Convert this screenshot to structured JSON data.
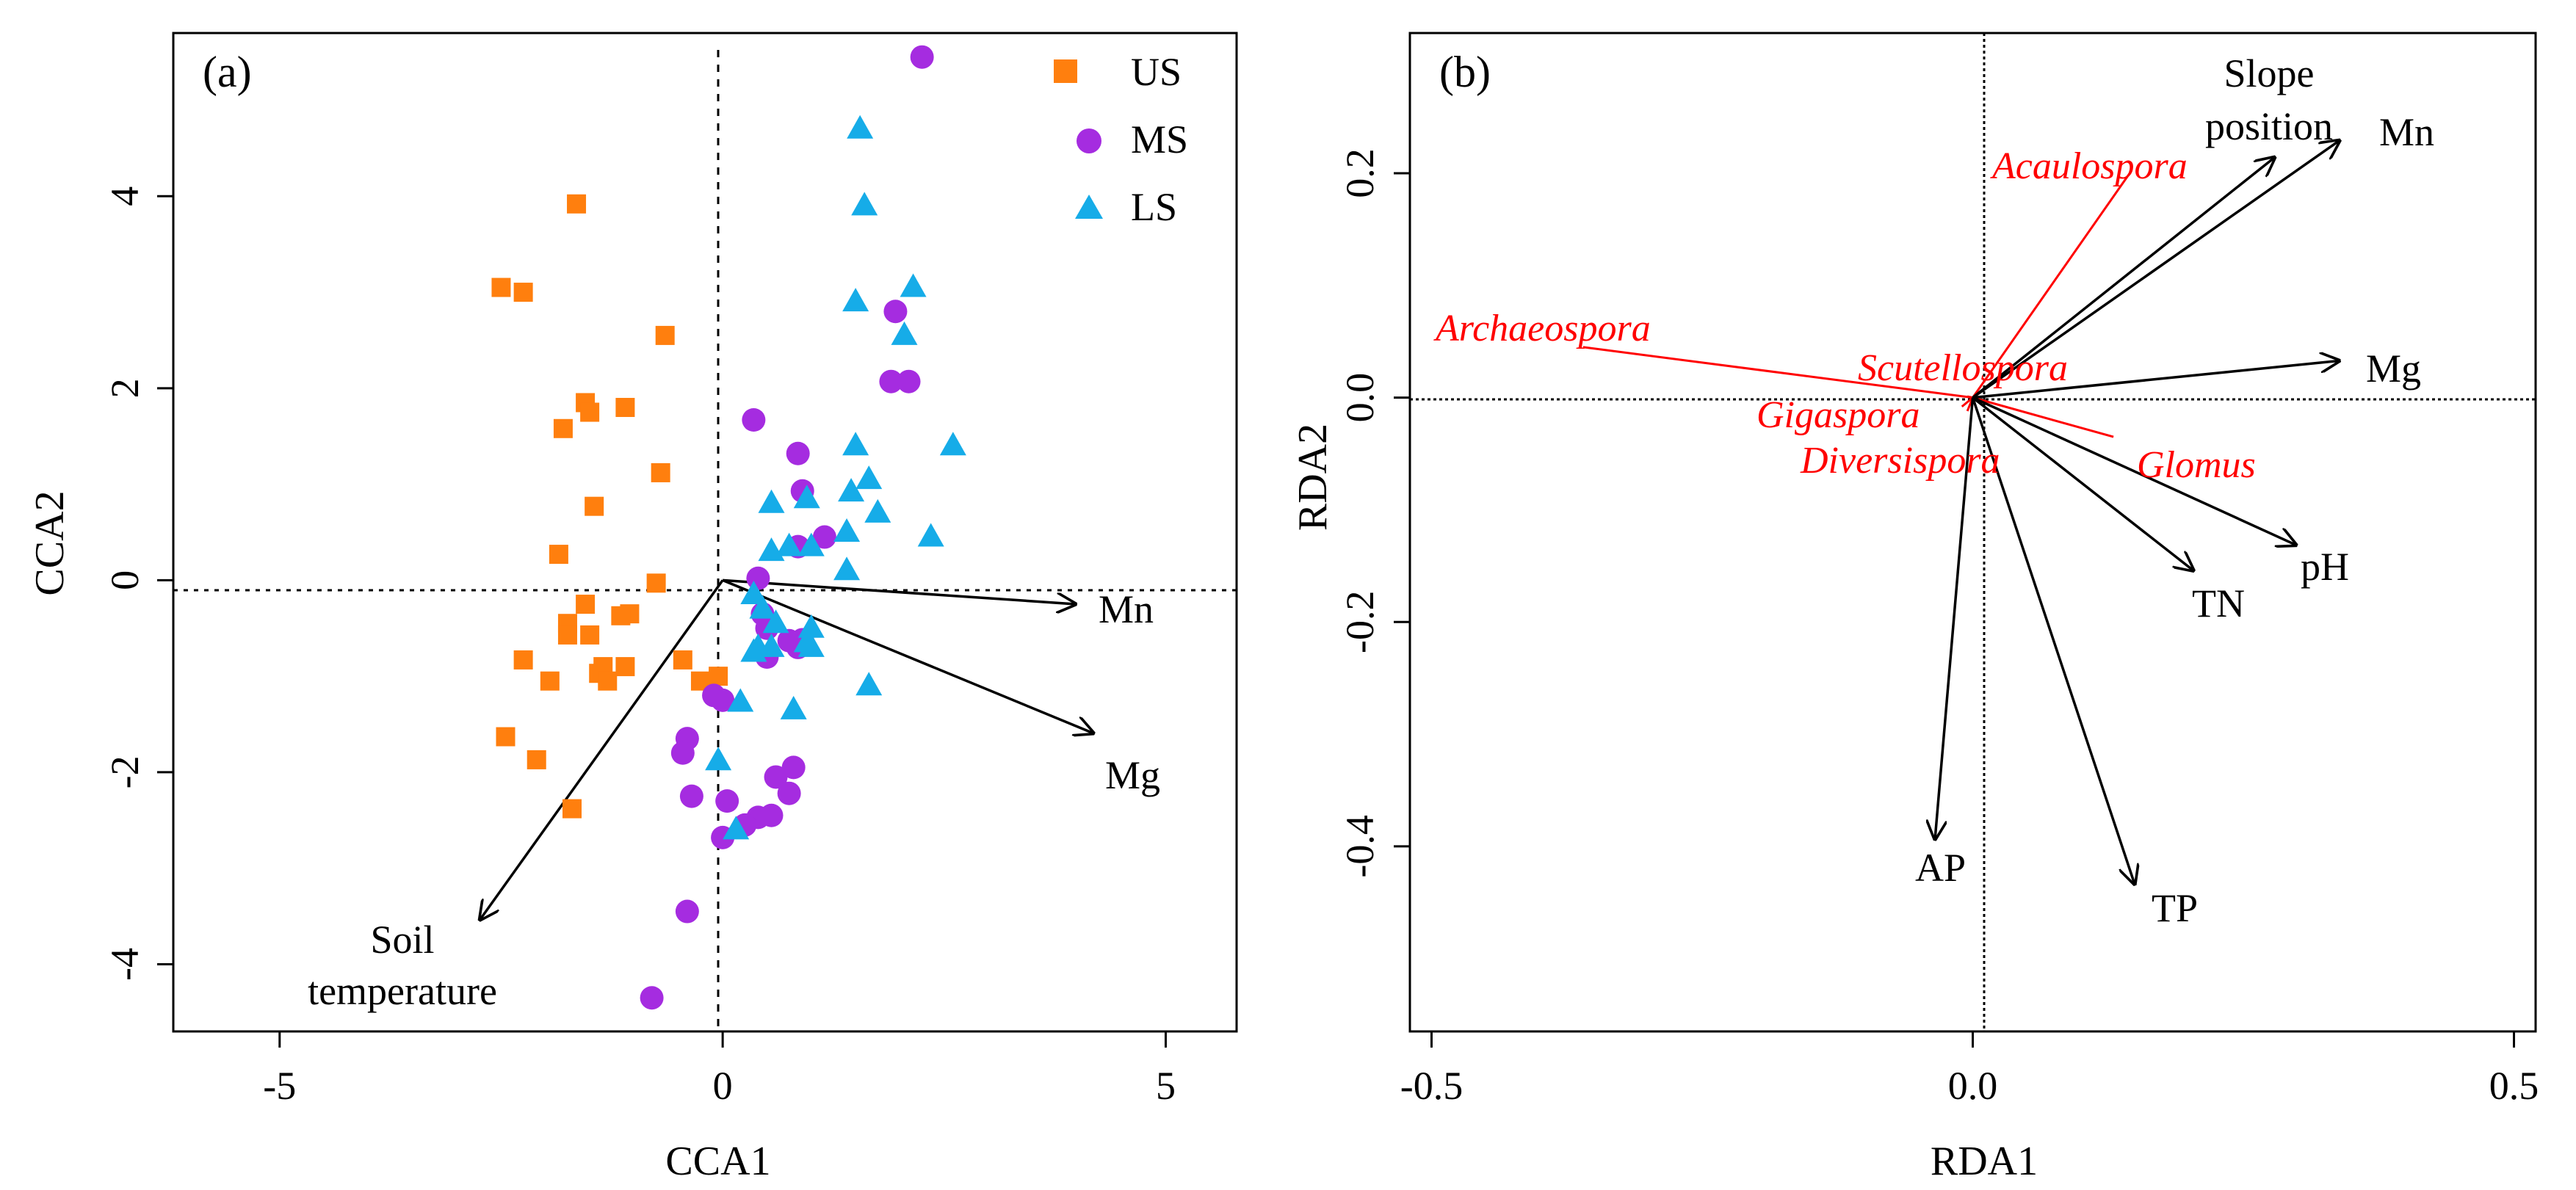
{
  "chart_data": [
    {
      "type": "scatter",
      "panel": "(a)",
      "xlabel": "CCA1",
      "ylabel": "CCA2",
      "xlim": [
        -6.2,
        5.8
      ],
      "ylim": [
        -4.7,
        5.7
      ],
      "xticks": [
        "-5",
        "0",
        "5"
      ],
      "yticks": [
        "-4",
        "-2",
        "0",
        "2",
        "4"
      ],
      "xtick_values": [
        -5,
        0,
        5
      ],
      "ytick_values": [
        -4,
        -2,
        0,
        2,
        4
      ],
      "legend_position": "top-right",
      "colors": {
        "US": "#FF7F0E",
        "MS": "#A52CE0",
        "LS": "#16ACE8",
        "axis": "#000000"
      },
      "series": [
        {
          "name": "US",
          "marker": "square",
          "points": [
            [
              -1.65,
              3.92
            ],
            [
              -2.5,
              3.05
            ],
            [
              -2.25,
              3.0
            ],
            [
              -0.65,
              2.55
            ],
            [
              -1.55,
              1.85
            ],
            [
              -1.5,
              1.75
            ],
            [
              -1.1,
              1.8
            ],
            [
              -1.8,
              1.58
            ],
            [
              -0.7,
              1.12
            ],
            [
              -1.45,
              0.77
            ],
            [
              -1.85,
              0.27
            ],
            [
              -0.75,
              -0.03
            ],
            [
              -1.55,
              -0.25
            ],
            [
              -1.75,
              -0.45
            ],
            [
              -1.05,
              -0.35
            ],
            [
              -1.15,
              -0.37
            ],
            [
              -1.75,
              -0.57
            ],
            [
              -1.5,
              -0.57
            ],
            [
              -2.25,
              -0.83
            ],
            [
              -1.35,
              -0.9
            ],
            [
              -1.1,
              -0.9
            ],
            [
              -0.45,
              -0.83
            ],
            [
              -1.4,
              -0.97
            ],
            [
              -1.3,
              -1.05
            ],
            [
              -1.95,
              -1.05
            ],
            [
              -0.25,
              -1.05
            ],
            [
              -0.05,
              -1.0
            ],
            [
              -2.45,
              -1.63
            ],
            [
              -2.1,
              -1.87
            ],
            [
              -1.7,
              -2.38
            ]
          ]
        },
        {
          "name": "MS",
          "marker": "circle",
          "points": [
            [
              2.25,
              5.45
            ],
            [
              1.95,
              2.8
            ],
            [
              1.9,
              2.07
            ],
            [
              2.1,
              2.07
            ],
            [
              0.35,
              1.67
            ],
            [
              0.85,
              1.32
            ],
            [
              0.9,
              0.93
            ],
            [
              1.15,
              0.45
            ],
            [
              0.85,
              0.35
            ],
            [
              0.4,
              0.02
            ],
            [
              0.45,
              -0.35
            ],
            [
              0.5,
              -0.5
            ],
            [
              0.9,
              -0.62
            ],
            [
              0.75,
              -0.63
            ],
            [
              0.85,
              -0.7
            ],
            [
              0.5,
              -0.8
            ],
            [
              -0.1,
              -1.2
            ],
            [
              0.0,
              -1.25
            ],
            [
              -0.4,
              -1.65
            ],
            [
              -0.45,
              -1.8
            ],
            [
              0.6,
              -2.05
            ],
            [
              0.8,
              -1.95
            ],
            [
              0.75,
              -2.22
            ],
            [
              -0.35,
              -2.25
            ],
            [
              0.05,
              -2.3
            ],
            [
              0.55,
              -2.45
            ],
            [
              0.4,
              -2.47
            ],
            [
              0.25,
              -2.55
            ],
            [
              0.0,
              -2.68
            ],
            [
              -0.4,
              -3.45
            ],
            [
              -0.8,
              -4.35
            ]
          ]
        },
        {
          "name": "LS",
          "marker": "triangle",
          "points": [
            [
              1.55,
              4.7
            ],
            [
              1.6,
              3.9
            ],
            [
              2.15,
              3.05
            ],
            [
              1.5,
              2.9
            ],
            [
              2.05,
              2.55
            ],
            [
              2.6,
              1.4
            ],
            [
              1.5,
              1.4
            ],
            [
              1.65,
              1.05
            ],
            [
              0.95,
              0.85
            ],
            [
              0.55,
              0.8
            ],
            [
              1.45,
              0.92
            ],
            [
              1.75,
              0.7
            ],
            [
              2.35,
              0.45
            ],
            [
              1.4,
              0.5
            ],
            [
              0.55,
              0.3
            ],
            [
              0.75,
              0.35
            ],
            [
              1.0,
              0.35
            ],
            [
              1.4,
              0.1
            ],
            [
              0.35,
              -0.15
            ],
            [
              0.45,
              -0.3
            ],
            [
              0.6,
              -0.45
            ],
            [
              1.0,
              -0.5
            ],
            [
              0.95,
              -0.65
            ],
            [
              1.0,
              -0.7
            ],
            [
              0.4,
              -0.7
            ],
            [
              0.55,
              -0.7
            ],
            [
              0.35,
              -0.75
            ],
            [
              0.2,
              -1.27
            ],
            [
              1.65,
              -1.1
            ],
            [
              0.8,
              -1.35
            ],
            [
              -0.05,
              -1.88
            ],
            [
              0.15,
              -2.6
            ]
          ]
        }
      ],
      "vectors": [
        {
          "label": "Mn",
          "x": 4.0,
          "y": -0.25
        },
        {
          "label": "Mg",
          "x": 4.2,
          "y": -1.6
        },
        {
          "label": "Soil temperature",
          "label_lines": [
            "Soil",
            "temperature"
          ],
          "x": -2.75,
          "y": -3.55
        }
      ]
    },
    {
      "type": "scatter",
      "panel": "(b)",
      "xlabel": "RDA1",
      "ylabel": "RDA2",
      "xlim": [
        -0.52,
        0.52
      ],
      "ylim": [
        -0.565,
        0.325
      ],
      "xticks": [
        "-0.5",
        "0.0",
        "0.5"
      ],
      "yticks": [
        "-0.4",
        "-0.2",
        "0.0",
        "0.2"
      ],
      "xtick_values": [
        -0.5,
        0.0,
        0.5
      ],
      "ytick_values": [
        -0.4,
        -0.2,
        0.0,
        0.2
      ],
      "colors": {
        "environment": "#000000",
        "genus": "#FF0000"
      },
      "environment_vectors": [
        {
          "label": "Slope position",
          "label_lines": [
            "Slope",
            "position"
          ],
          "x": 0.28,
          "y": 0.215
        },
        {
          "label": "Mn",
          "x": 0.34,
          "y": 0.23
        },
        {
          "label": "Mg",
          "x": 0.34,
          "y": 0.033
        },
        {
          "label": "pH",
          "x": 0.3,
          "y": -0.132
        },
        {
          "label": "TN",
          "x": 0.205,
          "y": -0.155
        },
        {
          "label": "AP",
          "x": -0.035,
          "y": -0.395
        },
        {
          "label": "TP",
          "x": 0.15,
          "y": -0.435
        }
      ],
      "genus_vectors": [
        {
          "label": "Acaulospora",
          "x": 0.145,
          "y": 0.2
        },
        {
          "label": "Archaeospora",
          "x": -0.36,
          "y": 0.045
        },
        {
          "label": "Scutellospora",
          "x": -0.005,
          "y": 0.001
        },
        {
          "label": "Gigaspora",
          "x": -0.01,
          "y": -0.008
        },
        {
          "label": "Diversispora",
          "x": -0.005,
          "y": -0.012
        },
        {
          "label": "Glomus",
          "x": 0.13,
          "y": -0.035
        }
      ]
    }
  ]
}
